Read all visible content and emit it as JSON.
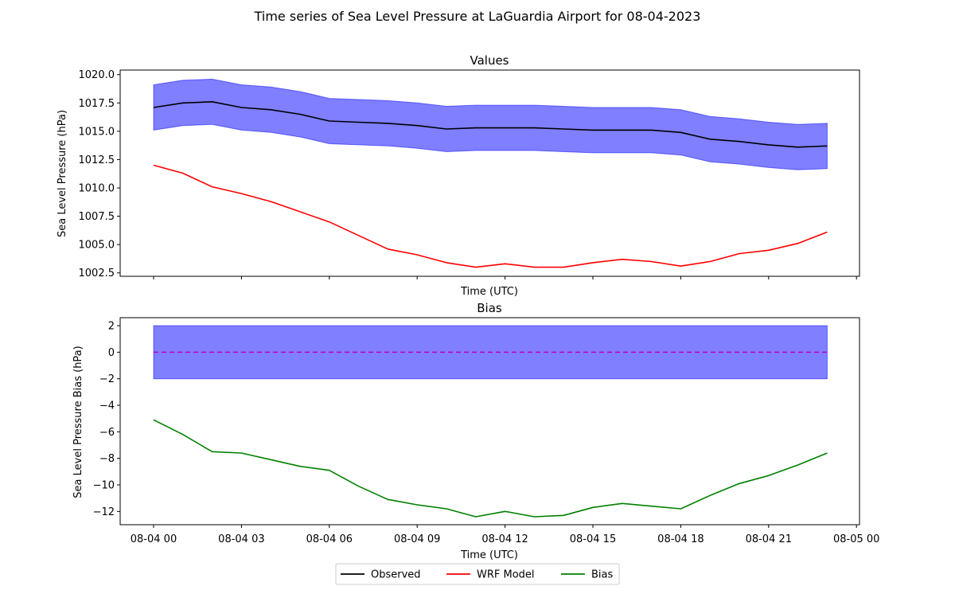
{
  "figure": {
    "title": "Time series of Sea Level Pressure at LaGuardia Airport for 08-04-2023"
  },
  "colors": {
    "observed": "#000000",
    "model": "#ff0000",
    "bias": "#008000",
    "band": "#0000ff",
    "zero_line": "#bf00bf"
  },
  "chart_data": [
    {
      "type": "line",
      "title": "Values",
      "xlabel": "Time (UTC)",
      "ylabel": "Sea Level Pressure (hPa)",
      "x": [
        "08-04 00:00",
        "08-04 01:00",
        "08-04 02:00",
        "08-04 03:00",
        "08-04 04:00",
        "08-04 05:00",
        "08-04 06:00",
        "08-04 07:00",
        "08-04 08:00",
        "08-04 09:00",
        "08-04 10:00",
        "08-04 11:00",
        "08-04 12:00",
        "08-04 13:00",
        "08-04 14:00",
        "08-04 15:00",
        "08-04 16:00",
        "08-04 17:00",
        "08-04 18:00",
        "08-04 19:00",
        "08-04 20:00",
        "08-04 21:00",
        "08-04 22:00",
        "08-04 23:00"
      ],
      "xticks": [
        "08-04 00",
        "08-04 03",
        "08-04 06",
        "08-04 09",
        "08-04 12",
        "08-04 15",
        "08-04 18",
        "08-04 21",
        "08-05 00"
      ],
      "ylim": [
        1002.2,
        1020.4
      ],
      "yticks": [
        "1002.5",
        "1005.0",
        "1007.5",
        "1010.0",
        "1012.5",
        "1015.0",
        "1017.5",
        "1020.0"
      ],
      "band": {
        "description_value": "Observed ± 2 hPa",
        "offset": 2
      },
      "series": [
        {
          "name": "Observed",
          "values": [
            1017.1,
            1017.5,
            1017.6,
            1017.1,
            1016.9,
            1016.5,
            1015.9,
            1015.8,
            1015.7,
            1015.5,
            1015.2,
            1015.3,
            1015.3,
            1015.3,
            1015.2,
            1015.1,
            1015.1,
            1015.1,
            1014.9,
            1014.3,
            1014.1,
            1013.8,
            1013.6,
            1013.7
          ]
        },
        {
          "name": "WRF Model",
          "values": [
            1012.0,
            1011.3,
            1010.1,
            1009.5,
            1008.8,
            1007.9,
            1007.0,
            1005.8,
            1004.6,
            1004.1,
            1003.4,
            1003.0,
            1003.3,
            1003.0,
            1003.0,
            1003.4,
            1003.7,
            1003.5,
            1003.1,
            1003.5,
            1004.2,
            1004.5,
            1005.1,
            1006.1
          ]
        }
      ],
      "grid": false
    },
    {
      "type": "line",
      "title": "Bias",
      "xlabel": "Time (UTC)",
      "ylabel": "Sea Level Pressure Bias (hPa)",
      "x": [
        "08-04 00:00",
        "08-04 01:00",
        "08-04 02:00",
        "08-04 03:00",
        "08-04 04:00",
        "08-04 05:00",
        "08-04 06:00",
        "08-04 07:00",
        "08-04 08:00",
        "08-04 09:00",
        "08-04 10:00",
        "08-04 11:00",
        "08-04 12:00",
        "08-04 13:00",
        "08-04 14:00",
        "08-04 15:00",
        "08-04 16:00",
        "08-04 17:00",
        "08-04 18:00",
        "08-04 19:00",
        "08-04 20:00",
        "08-04 21:00",
        "08-04 22:00",
        "08-04 23:00"
      ],
      "xticks": [
        "08-04 00",
        "08-04 03",
        "08-04 06",
        "08-04 09",
        "08-04 12",
        "08-04 15",
        "08-04 18",
        "08-04 21",
        "08-05 00"
      ],
      "ylim": [
        -13.0,
        2.6
      ],
      "yticks": [
        "−12",
        "−10",
        "−8",
        "−6",
        "−4",
        "−2",
        "0",
        "2"
      ],
      "band": {
        "lower": -2,
        "upper": 2
      },
      "zero_line": 0,
      "series": [
        {
          "name": "Bias",
          "values": [
            -5.1,
            -6.2,
            -7.5,
            -7.6,
            -8.1,
            -8.6,
            -8.9,
            -10.1,
            -11.1,
            -11.5,
            -11.8,
            -12.4,
            -12.0,
            -12.4,
            -12.3,
            -11.7,
            -11.4,
            -11.6,
            -11.8,
            -10.8,
            -9.9,
            -9.3,
            -8.5,
            -7.6
          ]
        }
      ],
      "grid": false
    }
  ],
  "legend": {
    "placement": "bottom-center",
    "entries": [
      {
        "label": "Observed",
        "color": "#000000"
      },
      {
        "label": "WRF Model",
        "color": "#ff0000"
      },
      {
        "label": "Bias",
        "color": "#008000"
      }
    ]
  }
}
